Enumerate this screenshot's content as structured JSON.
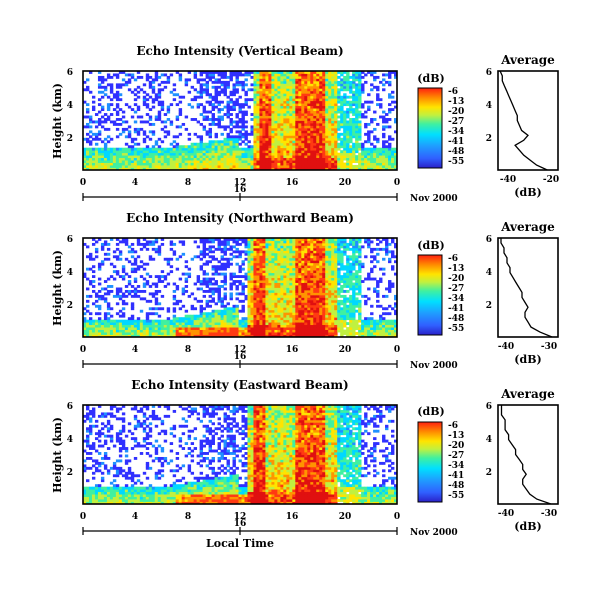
{
  "chart_data": {
    "type": "heatmap",
    "panels": [
      {
        "title": "Echo Intensity (Vertical Beam)",
        "ylabel": "Height (km)",
        "yticks": [
          "6",
          "4",
          "2"
        ],
        "ylim": [
          0,
          6
        ],
        "xticks": [
          "0",
          "4",
          "8",
          "12",
          "16",
          "20",
          "0"
        ],
        "xlim": [
          0,
          24
        ],
        "date_tick": "16",
        "date_label": "Nov 2000",
        "colorbar": {
          "unit": "(dB)",
          "ticks": [
            "-6",
            "-13",
            "-20",
            "-27",
            "-34",
            "-41",
            "-48",
            "-55"
          ]
        },
        "average": {
          "title": "Average",
          "xlabel": "(dB)",
          "xticks": [
            "-40",
            "-20"
          ],
          "xlim": [
            -45,
            -17
          ],
          "yticks": [
            "6",
            "4",
            "2"
          ],
          "ylim": [
            0,
            6
          ],
          "profile": [
            [
              0.0,
              -22
            ],
            [
              0.3,
              -27
            ],
            [
              0.6,
              -30
            ],
            [
              0.9,
              -33
            ],
            [
              1.2,
              -35
            ],
            [
              1.5,
              -37
            ],
            [
              1.8,
              -33
            ],
            [
              2.1,
              -31
            ],
            [
              2.4,
              -34
            ],
            [
              2.7,
              -35
            ],
            [
              3.0,
              -36
            ],
            [
              3.3,
              -36
            ],
            [
              3.6,
              -37
            ],
            [
              3.9,
              -38
            ],
            [
              4.2,
              -39
            ],
            [
              4.5,
              -40
            ],
            [
              4.8,
              -41
            ],
            [
              5.1,
              -42
            ],
            [
              5.4,
              -43
            ],
            [
              5.7,
              -43
            ],
            [
              6.0,
              -44
            ]
          ]
        }
      },
      {
        "title": "Echo Intensity (Northward Beam)",
        "ylabel": "Height (km)",
        "yticks": [
          "6",
          "4",
          "2"
        ],
        "ylim": [
          0,
          6
        ],
        "xticks": [
          "0",
          "4",
          "8",
          "12",
          "16",
          "20",
          "0"
        ],
        "xlim": [
          0,
          24
        ],
        "date_tick": "16",
        "date_label": "Nov 2000",
        "colorbar": {
          "unit": "(dB)",
          "ticks": [
            "-6",
            "-13",
            "-20",
            "-27",
            "-34",
            "-41",
            "-48",
            "-55"
          ]
        },
        "average": {
          "title": "Average",
          "xlabel": "(dB)",
          "xticks": [
            "-40",
            "-30"
          ],
          "xlim": [
            -44,
            -24
          ],
          "yticks": [
            "6",
            "4",
            "2"
          ],
          "ylim": [
            0,
            6
          ],
          "profile": [
            [
              0.0,
              -26
            ],
            [
              0.3,
              -30
            ],
            [
              0.6,
              -33
            ],
            [
              0.9,
              -34
            ],
            [
              1.2,
              -35
            ],
            [
              1.5,
              -35
            ],
            [
              1.8,
              -34
            ],
            [
              2.1,
              -35
            ],
            [
              2.4,
              -36
            ],
            [
              2.7,
              -36
            ],
            [
              3.0,
              -37
            ],
            [
              3.3,
              -38
            ],
            [
              3.6,
              -39
            ],
            [
              3.9,
              -40
            ],
            [
              4.2,
              -40
            ],
            [
              4.5,
              -41
            ],
            [
              4.8,
              -41
            ],
            [
              5.1,
              -42
            ],
            [
              5.4,
              -42
            ],
            [
              5.7,
              -43
            ],
            [
              6.0,
              -43
            ]
          ]
        }
      },
      {
        "title": "Echo Intensity (Eastward Beam)",
        "ylabel": "Height (km)",
        "yticks": [
          "6",
          "4",
          "2"
        ],
        "ylim": [
          0,
          6
        ],
        "xticks": [
          "0",
          "4",
          "8",
          "12",
          "16",
          "20",
          "0"
        ],
        "xlim": [
          0,
          24
        ],
        "date_tick": "16",
        "date_label": "Nov 2000",
        "xlabel": "Local Time",
        "colorbar": {
          "unit": "(dB)",
          "ticks": [
            "-6",
            "-13",
            "-20",
            "-27",
            "-34",
            "-41",
            "-48",
            "-55"
          ]
        },
        "average": {
          "title": "Average",
          "xlabel": "(dB)",
          "xticks": [
            "-40",
            "-30"
          ],
          "xlim": [
            -44,
            -27
          ],
          "yticks": [
            "6",
            "4",
            "2"
          ],
          "ylim": [
            0,
            6
          ],
          "profile": [
            [
              0.0,
              -29
            ],
            [
              0.3,
              -33
            ],
            [
              0.6,
              -35
            ],
            [
              0.9,
              -36
            ],
            [
              1.2,
              -37
            ],
            [
              1.5,
              -37
            ],
            [
              1.8,
              -36
            ],
            [
              2.1,
              -37
            ],
            [
              2.4,
              -37
            ],
            [
              2.7,
              -38
            ],
            [
              3.0,
              -39
            ],
            [
              3.3,
              -39
            ],
            [
              3.6,
              -40
            ],
            [
              3.9,
              -41
            ],
            [
              4.2,
              -41
            ],
            [
              4.5,
              -42
            ],
            [
              4.8,
              -42
            ],
            [
              5.1,
              -42
            ],
            [
              5.4,
              -43
            ],
            [
              5.7,
              -43
            ],
            [
              6.0,
              -43
            ]
          ]
        }
      }
    ],
    "colors": {
      "scale": [
        "#3030ff",
        "#1e90ff",
        "#00d8ff",
        "#40f0a0",
        "#c0f040",
        "#ffe400",
        "#ff9400",
        "#ff3a12",
        "#e01010"
      ]
    }
  }
}
